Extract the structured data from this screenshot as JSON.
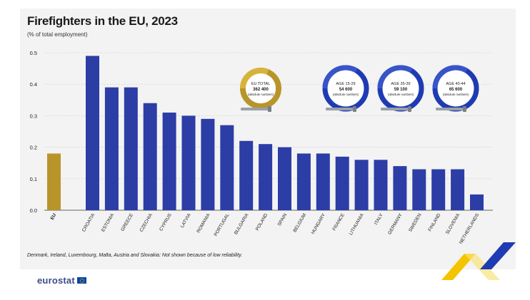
{
  "header": {
    "title": "Firefighters in the EU, 2023",
    "subtitle": "(% of total employment)"
  },
  "footnote": "Denmark, Ireland, Luxembourg, Malta, Austria and Slovakia: Not shown because of low reliability.",
  "brand": {
    "name": "eurostat"
  },
  "colors": {
    "eu_bar": "#b8952a",
    "country_bar": "#2c3da6",
    "accent_yellow": "#f5c400",
    "accent_blue": "#1f3bb3"
  },
  "rings": [
    {
      "line1": "EU TOTAL",
      "line2": "362 400",
      "line3": "(absolute numbers)",
      "style": "gold"
    },
    {
      "line1": "AGE 15-29",
      "line2": "54 600",
      "line3": "(absolute numbers)",
      "style": "blue"
    },
    {
      "line1": "AGE 35-39",
      "line2": "59 100",
      "line3": "(absolute numbers)",
      "style": "blue"
    },
    {
      "line1": "AGE 40-44",
      "line2": "65 600",
      "line3": "(absolute numbers)",
      "style": "blue"
    }
  ],
  "chart_data": {
    "type": "bar",
    "title": "Firefighters in the EU, 2023",
    "subtitle": "(% of total employment)",
    "ylim": [
      0,
      0.5
    ],
    "yticks": [
      "0.0",
      "0.1",
      "0.2",
      "0.3",
      "0.4",
      "0.5"
    ],
    "grid": true,
    "categories": [
      "EU",
      "Croatia",
      "Estonia",
      "Greece",
      "Czechia",
      "Cyprus",
      "Latvia",
      "Romania",
      "Portugal",
      "Bulgaria",
      "Poland",
      "Spain",
      "Belgium",
      "Hungary",
      "France",
      "Lithuania",
      "Italy",
      "Germany",
      "Sweden",
      "Finland",
      "Slovenia",
      "Netherlands"
    ],
    "values": [
      0.18,
      0.49,
      0.39,
      0.39,
      0.34,
      0.31,
      0.3,
      0.29,
      0.27,
      0.22,
      0.21,
      0.2,
      0.18,
      0.18,
      0.17,
      0.16,
      0.16,
      0.14,
      0.13,
      0.13,
      0.13,
      0.05
    ]
  }
}
